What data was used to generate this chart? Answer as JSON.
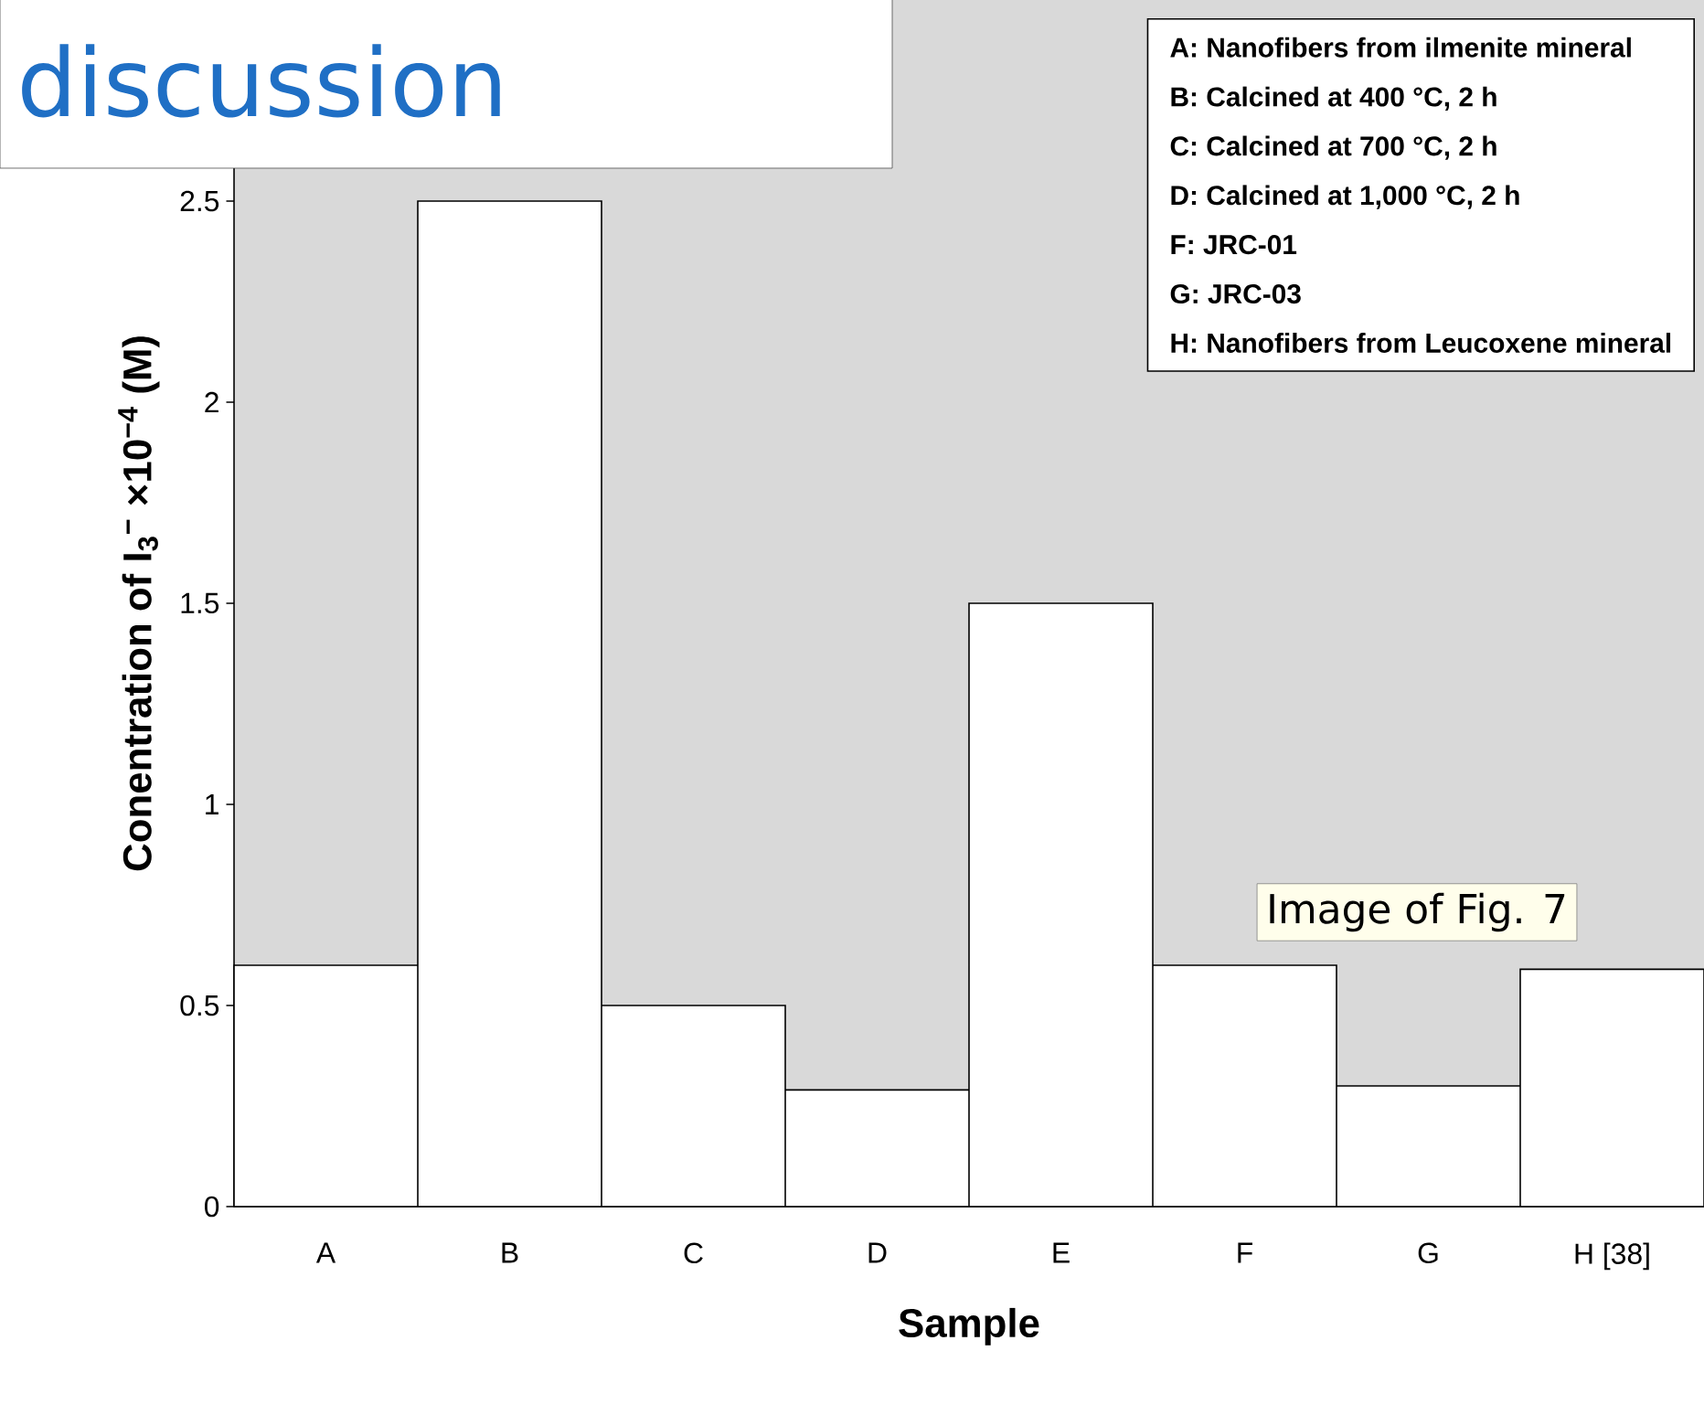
{
  "chart_data": {
    "type": "bar",
    "title": "discussion",
    "categories": [
      "A",
      "B",
      "C",
      "D",
      "E",
      "F",
      "G",
      "H [38]"
    ],
    "values": [
      0.6,
      2.5,
      0.5,
      0.29,
      1.5,
      0.6,
      0.3,
      0.59
    ],
    "color": "#ffffff",
    "xlabel": "Sample",
    "ylabel": "Conentration of I$_{3}$$^{−}$ ×10$^{−4}$ (M)",
    "ylim": [
      0,
      3
    ],
    "yticks": [
      0,
      0.5,
      1,
      1.5,
      2,
      2.5
    ],
    "grid": false,
    "annotations": [
      "A: Nanofibers from ilmenite mineral",
      "B: Calcined at 400 °C, 2 h",
      "C: Calcined at 700 °C, 2 h",
      "D: Calcined at 1,000 °C, 2 h",
      "F: JRC-01",
      "G: JRC-03",
      "H: Nanofibers from Leucoxene mineral",
      "Image of Fig. 7"
    ]
  }
}
